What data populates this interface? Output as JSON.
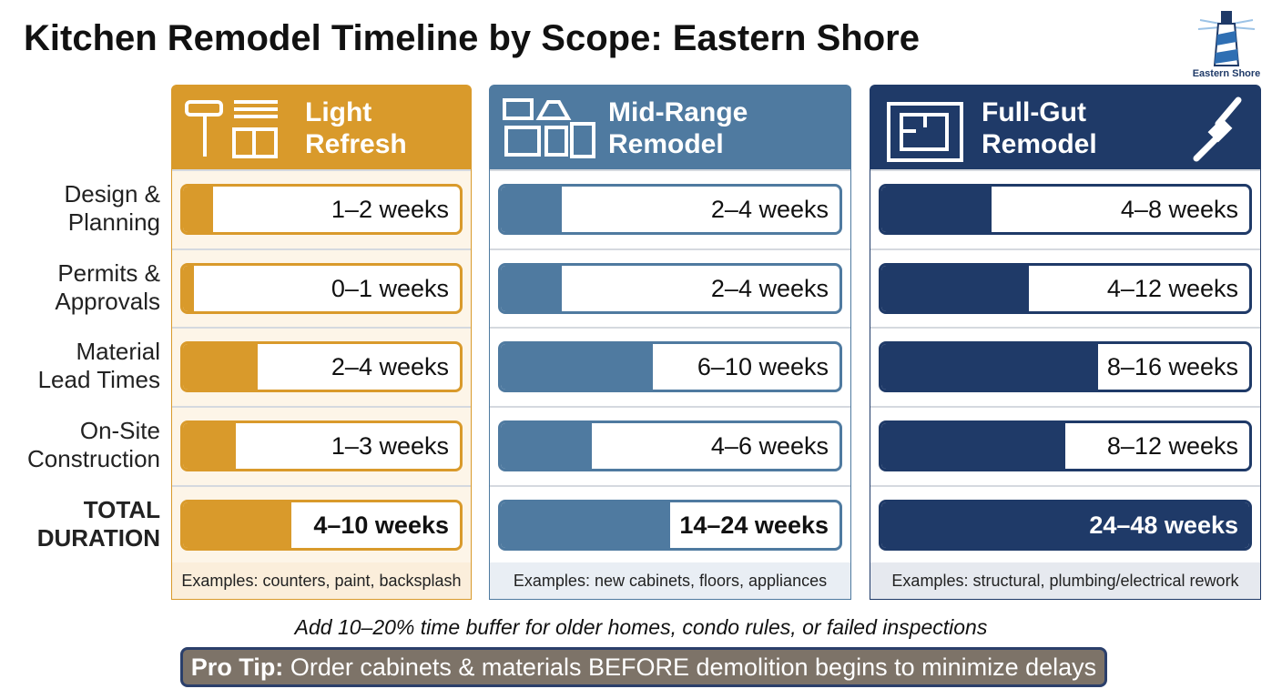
{
  "header": {
    "title": "Kitchen Remodel Timeline by Scope: Eastern Shore",
    "logo_text": "Eastern Shore"
  },
  "row_labels": [
    [
      "Design &",
      "Planning"
    ],
    [
      "Permits &",
      "Approvals"
    ],
    [
      "Material",
      "Lead Times"
    ],
    [
      "On-Site",
      "Construction"
    ],
    [
      "TOTAL",
      "DURATION"
    ]
  ],
  "columns": [
    {
      "title": [
        "Light",
        "Refresh"
      ],
      "cells": [
        "1–2 weeks",
        "0–1 weeks",
        "2–4 weeks",
        "1–3 weeks",
        "4–10 weeks"
      ],
      "examples": "Examples: counters, paint, backsplash"
    },
    {
      "title": [
        "Mid-Range",
        "Remodel"
      ],
      "cells": [
        "2–4 weeks",
        "2–4 weeks",
        "6–10 weeks",
        "4–6 weeks",
        "14–24 weeks"
      ],
      "examples": "Examples: new cabinets, floors, appliances"
    },
    {
      "title": [
        "Full-Gut",
        "Remodel"
      ],
      "cells": [
        "4–8 weeks",
        "4–12 weeks",
        "8–16 weeks",
        "8–12 weeks",
        "24–48 weeks"
      ],
      "examples": "Examples: structural, plumbing/electrical rework"
    }
  ],
  "footnote": "Add 10–20% time buffer for older homes, condo rules, or failed inspections",
  "pro_tip": {
    "label": "Pro Tip:",
    "text": "Order cabinets & materials BEFORE demolition begins to minimize delays"
  }
}
